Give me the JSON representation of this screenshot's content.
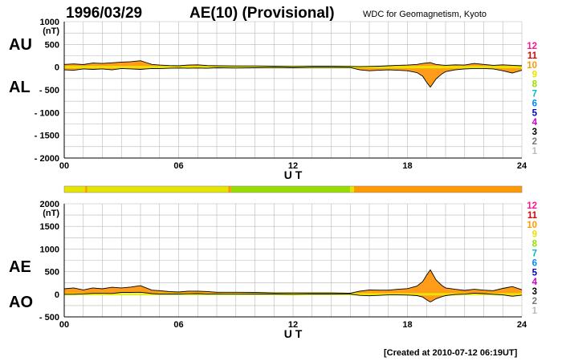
{
  "header": {
    "date": "1996/03/29",
    "title": "AE(10) (Provisional)",
    "source": "WDC for Geomagnetism, Kyoto"
  },
  "footer": {
    "created": "[Created at 2010-07-12 06:19UT]"
  },
  "level_legend": [
    "12",
    "11",
    "10",
    "9",
    "8",
    "7",
    "6",
    "5",
    "4",
    "3",
    "2",
    "1"
  ],
  "level_colors": [
    "#ff1493",
    "#dd0000",
    "#ff9900",
    "#e5e500",
    "#99dd00",
    "#00bbbb",
    "#0088ff",
    "#0000cc",
    "#cc00cc",
    "#000000",
    "#777777",
    "#bbbbbb"
  ],
  "fill_color": "#ff9d1a",
  "quiet_color": "#e8f000",
  "chart_data": [
    {
      "type": "area",
      "name": "AU/AL",
      "labels": [
        "AU",
        "AL"
      ],
      "xlabel": "U T",
      "unit": "(nT)",
      "xlim": [
        0,
        24
      ],
      "ylim": [
        -2000,
        1000
      ],
      "xticks": [
        "00",
        "06",
        "12",
        "18",
        "24"
      ],
      "yticks": [
        1000,
        500,
        0,
        -500,
        -1000,
        -1500,
        -2000
      ],
      "ytick_labels": [
        "1000",
        "500",
        "0",
        "- 500",
        "- 1000",
        "- 1500",
        "- 2000"
      ],
      "grid": true,
      "x": [
        0,
        0.5,
        1,
        1.5,
        2,
        2.5,
        3,
        3.5,
        4,
        4.3,
        4.6,
        5,
        5.5,
        6,
        6.5,
        7,
        7.5,
        8,
        9,
        10,
        11,
        12,
        13,
        14,
        15,
        15.5,
        16,
        16.5,
        17,
        17.5,
        18,
        18.5,
        18.8,
        19,
        19.2,
        19.3,
        19.5,
        19.8,
        20,
        20.5,
        21,
        21.5,
        22,
        22.5,
        23,
        23.5,
        24
      ],
      "series": [
        {
          "name": "AU",
          "values": [
            60,
            70,
            55,
            90,
            80,
            95,
            110,
            120,
            140,
            100,
            60,
            45,
            35,
            30,
            45,
            50,
            35,
            30,
            25,
            25,
            20,
            15,
            20,
            20,
            15,
            10,
            15,
            20,
            30,
            40,
            45,
            60,
            80,
            90,
            100,
            85,
            60,
            45,
            40,
            50,
            45,
            80,
            60,
            40,
            50,
            40,
            30
          ]
        },
        {
          "name": "AL",
          "values": [
            -60,
            -70,
            -40,
            -50,
            -40,
            -60,
            -30,
            -40,
            -50,
            -40,
            -30,
            -35,
            -25,
            -20,
            -25,
            -20,
            -25,
            -15,
            -20,
            -15,
            -10,
            -15,
            -10,
            -10,
            -10,
            -60,
            -80,
            -70,
            -60,
            -70,
            -80,
            -120,
            -200,
            -330,
            -440,
            -380,
            -260,
            -150,
            -100,
            -60,
            -40,
            -30,
            -30,
            -40,
            -80,
            -130,
            -70
          ]
        }
      ]
    },
    {
      "type": "area",
      "name": "AE/AO",
      "labels": [
        "AE",
        "AO"
      ],
      "xlabel": "U T",
      "unit": "(nT)",
      "xlim": [
        0,
        24
      ],
      "ylim": [
        -500,
        2000
      ],
      "xticks": [
        "00",
        "06",
        "12",
        "18",
        "24"
      ],
      "yticks": [
        2000,
        1500,
        1000,
        500,
        0,
        -500
      ],
      "ytick_labels": [
        "2000",
        "1500",
        "1000",
        "500",
        "0",
        "- 500"
      ],
      "grid": true,
      "x": [
        0,
        0.5,
        1,
        1.5,
        2,
        2.5,
        3,
        3.5,
        4,
        4.3,
        4.6,
        5,
        5.5,
        6,
        6.5,
        7,
        7.5,
        8,
        9,
        10,
        11,
        12,
        13,
        14,
        15,
        15.5,
        16,
        16.5,
        17,
        17.5,
        18,
        18.5,
        18.8,
        19,
        19.2,
        19.3,
        19.5,
        19.8,
        20,
        20.5,
        21,
        21.5,
        22,
        22.5,
        23,
        23.5,
        24
      ],
      "series": [
        {
          "name": "AE",
          "values": [
            120,
            140,
            95,
            140,
            120,
            155,
            140,
            160,
            190,
            140,
            90,
            80,
            60,
            50,
            70,
            70,
            60,
            45,
            45,
            40,
            30,
            30,
            30,
            30,
            25,
            70,
            95,
            90,
            90,
            110,
            125,
            180,
            280,
            420,
            540,
            465,
            320,
            195,
            140,
            110,
            85,
            110,
            90,
            80,
            130,
            170,
            100
          ]
        },
        {
          "name": "AO",
          "values": [
            0,
            0,
            8,
            20,
            20,
            18,
            40,
            40,
            45,
            30,
            15,
            5,
            5,
            5,
            10,
            15,
            5,
            8,
            3,
            5,
            5,
            0,
            5,
            5,
            3,
            -25,
            -33,
            -25,
            -15,
            -15,
            -18,
            -30,
            -60,
            -120,
            -170,
            -148,
            -100,
            -53,
            -30,
            -5,
            3,
            25,
            15,
            0,
            -15,
            -45,
            -20
          ]
        }
      ]
    }
  ],
  "activity_bar": {
    "boundaries": [
      0,
      1.1,
      1.2,
      8.6,
      8.75,
      15,
      15.2,
      24
    ],
    "levels": [
      9,
      10,
      9,
      10,
      8,
      9,
      10
    ]
  }
}
